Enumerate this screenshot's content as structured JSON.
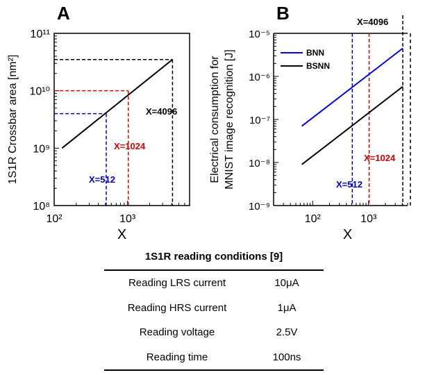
{
  "chart_data": [
    {
      "type": "line",
      "panel_label": "A",
      "xlabel": "X",
      "ylabel": "1S1R Crossbar area [nm²]",
      "xscale": "log",
      "yscale": "log",
      "xlim": [
        100,
        7000
      ],
      "ylim": [
        100000000,
        100000000000
      ],
      "x_ticks": [
        "10²",
        "10³"
      ],
      "y_ticks": [
        "10⁸",
        "10⁹",
        "10¹⁰",
        "10¹¹"
      ],
      "series": [
        {
          "color": "#000000",
          "x": [
            128,
            4096
          ],
          "y": [
            1000000000,
            35000000000
          ]
        }
      ],
      "annotations": [
        {
          "text": "X=512",
          "x": 512,
          "y": 4000000000,
          "color": "#0000cc"
        },
        {
          "text": "X=1024",
          "x": 1024,
          "y": 10000000000,
          "color": "#dd0000"
        },
        {
          "text": "X=4096",
          "x": 4096,
          "y": 35000000000,
          "color": "#000000"
        }
      ]
    },
    {
      "type": "line",
      "panel_label": "B",
      "xlabel": "X",
      "ylabel_line1": "Electrical consumption for",
      "ylabel_line2": "MNIST image recognition [J]",
      "xscale": "log",
      "yscale": "log",
      "xlim": [
        20,
        5000
      ],
      "ylim": [
        1e-09,
        1e-05
      ],
      "x_ticks": [
        "10²",
        "10³"
      ],
      "y_ticks": [
        "10⁻⁹",
        "10⁻⁸",
        "10⁻⁷",
        "10⁻⁶",
        "10⁻⁵"
      ],
      "legend": "top-left",
      "series": [
        {
          "name": "BNN",
          "color": "#0000ff",
          "x": [
            64,
            4096
          ],
          "y": [
            7e-08,
            4.5e-06
          ]
        },
        {
          "name": "BSNN",
          "color": "#000000",
          "x": [
            64,
            4096
          ],
          "y": [
            9e-09,
            5.8e-07
          ]
        }
      ],
      "annotations": [
        {
          "text": "X=512",
          "x": 512,
          "color": "#0000cc"
        },
        {
          "text": "X=1024",
          "x": 1024,
          "color": "#dd0000"
        },
        {
          "text": "X=4096",
          "x": 4096,
          "color": "#000000"
        }
      ]
    }
  ],
  "table": {
    "title": "1S1R reading conditions [9]",
    "rows": [
      {
        "parameter": "Reading LRS current",
        "value": "10μA"
      },
      {
        "parameter": "Reading HRS current",
        "value": "1μA"
      },
      {
        "parameter": "Reading voltage",
        "value": "2.5V"
      },
      {
        "parameter": "Reading time",
        "value": "100ns"
      }
    ]
  }
}
